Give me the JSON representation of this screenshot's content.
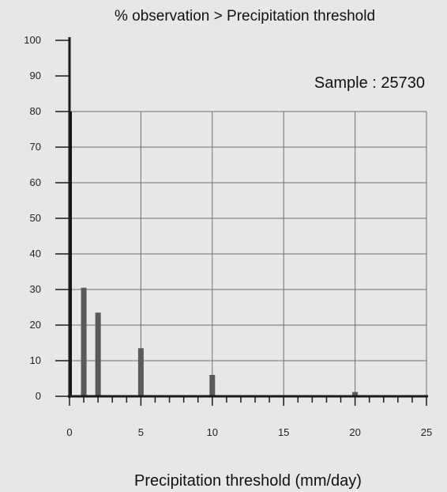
{
  "chart_data": {
    "type": "bar",
    "title": "% observation > Precipitation threshold",
    "xlabel": "Precipitation threshold (mm/day)",
    "ylabel": "",
    "annotation": "Sample : 25730",
    "xlim": [
      0,
      25
    ],
    "ylim": [
      0,
      100
    ],
    "xticks": [
      0,
      5,
      10,
      15,
      20,
      25
    ],
    "yticks": [
      0,
      10,
      20,
      30,
      40,
      50,
      60,
      70,
      80,
      90,
      100
    ],
    "grid_x": [
      5,
      10,
      15,
      20,
      25
    ],
    "grid_y": [
      10,
      20,
      30,
      40,
      50,
      60,
      70,
      80
    ],
    "grid": true,
    "x": [
      0,
      1,
      2,
      5,
      10,
      20
    ],
    "values": [
      80,
      30.5,
      23.5,
      13.5,
      6,
      1.2
    ],
    "colors": {
      "bar": "#5a5a5a",
      "first_bar": "#111111",
      "background": "#e7e7e7",
      "grid": "#6f6f6f",
      "axis": "#1a1a1a"
    }
  }
}
